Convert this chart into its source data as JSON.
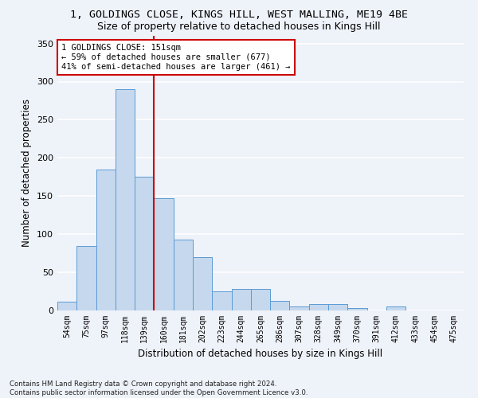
{
  "title1": "1, GOLDINGS CLOSE, KINGS HILL, WEST MALLING, ME19 4BE",
  "title2": "Size of property relative to detached houses in Kings Hill",
  "xlabel": "Distribution of detached houses by size in Kings Hill",
  "ylabel": "Number of detached properties",
  "categories": [
    "54sqm",
    "75sqm",
    "97sqm",
    "118sqm",
    "139sqm",
    "160sqm",
    "181sqm",
    "202sqm",
    "223sqm",
    "244sqm",
    "265sqm",
    "286sqm",
    "307sqm",
    "328sqm",
    "349sqm",
    "370sqm",
    "391sqm",
    "412sqm",
    "433sqm",
    "454sqm",
    "475sqm"
  ],
  "values": [
    12,
    85,
    185,
    290,
    175,
    147,
    93,
    70,
    25,
    28,
    28,
    13,
    5,
    8,
    8,
    3,
    0,
    5,
    0,
    0,
    0
  ],
  "bar_color": "#c5d8ed",
  "bar_edge_color": "#5b9bd5",
  "vline_color": "#cc0000",
  "annotation_text": "1 GOLDINGS CLOSE: 151sqm\n← 59% of detached houses are smaller (677)\n41% of semi-detached houses are larger (461) →",
  "annotation_box_color": "white",
  "annotation_box_edge": "#cc0000",
  "ylim": [
    0,
    360
  ],
  "yticks": [
    0,
    50,
    100,
    150,
    200,
    250,
    300,
    350
  ],
  "footnote": "Contains HM Land Registry data © Crown copyright and database right 2024.\nContains public sector information licensed under the Open Government Licence v3.0.",
  "bg_color": "#eef2f9",
  "grid_color": "white",
  "title1_fontsize": 9.5,
  "title2_fontsize": 9
}
